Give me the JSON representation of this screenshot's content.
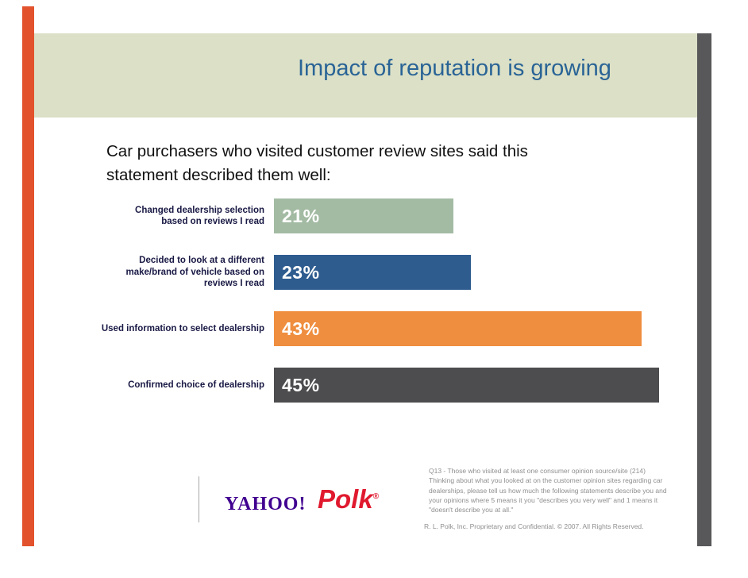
{
  "slide": {
    "title": "Impact of reputation is growing",
    "subtitle": "Car purchasers who visited customer review sites said this statement described them well:"
  },
  "chart_data": {
    "type": "bar",
    "orientation": "horizontal",
    "title": "Car purchasers who visited customer review sites said this statement described them well:",
    "categories": [
      "Changed dealership selection based on reviews I read",
      "Decided to look at a different make/brand of vehicle based on reviews I read",
      "Used information to select dealership",
      "Confirmed choice of dealership"
    ],
    "categories_display": [
      "Changed dealership selection\nbased on reviews I read",
      "Decided to look at a different\nmake/brand of vehicle based on\nreviews I read",
      "Used information to select dealership",
      "Confirmed choice of dealership"
    ],
    "values": [
      21,
      23,
      43,
      45
    ],
    "value_labels": [
      "21%",
      "23%",
      "43%",
      "45%"
    ],
    "bar_colors": [
      "#a3bba3",
      "#2e5c8f",
      "#ef8e3f",
      "#4d4d4f"
    ],
    "xlim": [
      0,
      45
    ],
    "grid": false,
    "legend": false
  },
  "footer": {
    "yahoo_logo": "YAHOO!",
    "polk_logo": "Polk",
    "footnote": "Q13 - Those who visited at least one consumer opinion source/site (214) Thinking about what you looked at on the customer opinion sites regarding car dealerships, please tell us how much the following statements describe you and your opinions where 5 means it you \"describes you very well\" and 1 means it \"doesn't describe you at all.\"",
    "copyright": "R. L. Polk, Inc. Proprietary and Confidential. © 2007. All Rights Reserved."
  },
  "colors": {
    "accent_stripe": "#e2522c",
    "header_band": "#dbe0c6",
    "title_text": "#2a6496",
    "right_stripe": "#58585a"
  }
}
